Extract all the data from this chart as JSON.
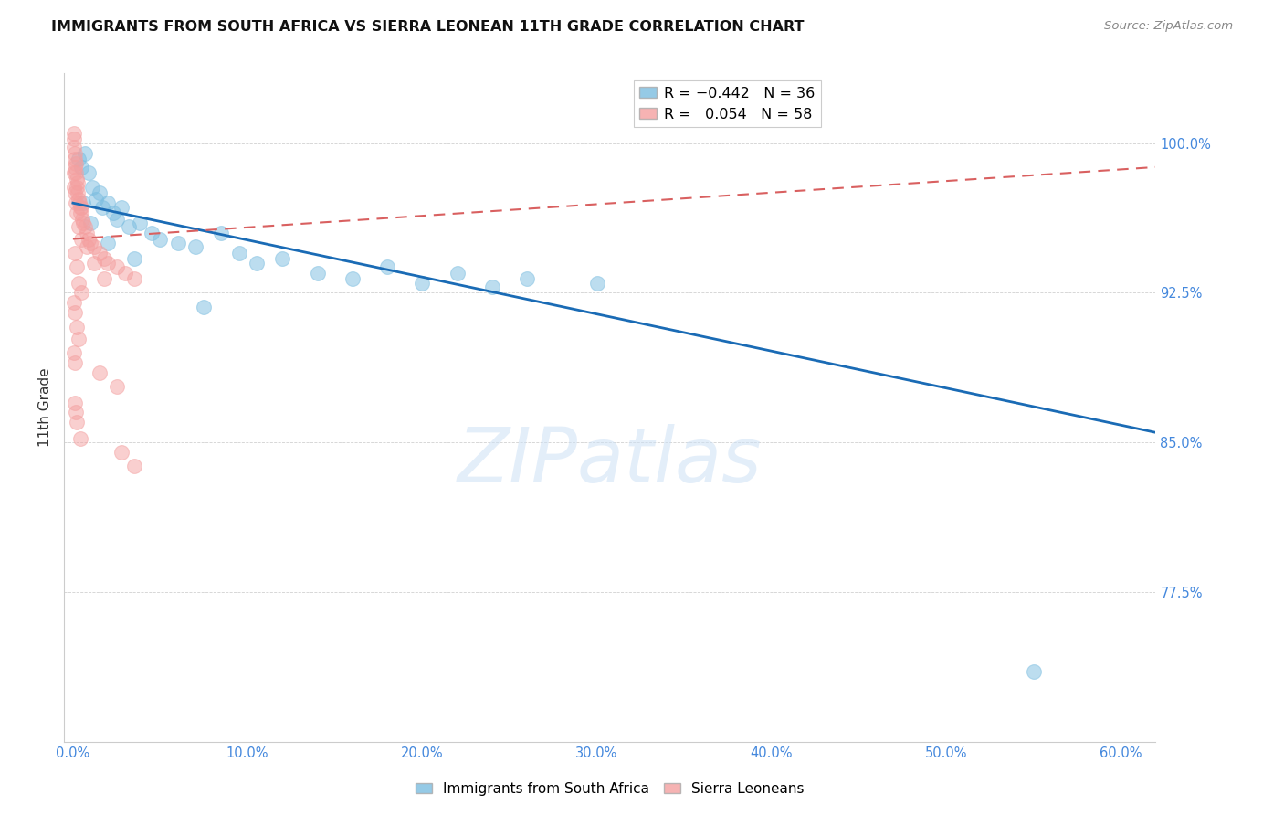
{
  "title": "IMMIGRANTS FROM SOUTH AFRICA VS SIERRA LEONEAN 11TH GRADE CORRELATION CHART",
  "source": "Source: ZipAtlas.com",
  "xlabel_vals": [
    0.0,
    10.0,
    20.0,
    30.0,
    40.0,
    50.0,
    60.0
  ],
  "ylabel_vals": [
    77.5,
    85.0,
    92.5,
    100.0
  ],
  "ylabel_ticks": [
    "77.5%",
    "85.0%",
    "92.5%",
    "100.0%"
  ],
  "xlim": [
    -0.5,
    62.0
  ],
  "ylim": [
    70.0,
    103.5
  ],
  "ylabel_label": "11th Grade",
  "blue_color": "#7bbde0",
  "pink_color": "#f4a0a0",
  "blue_line_color": "#1a6bb5",
  "pink_line_color": "#d96060",
  "watermark_text": "ZIPatlas",
  "blue_scatter": [
    [
      0.3,
      99.2
    ],
    [
      0.5,
      98.8
    ],
    [
      0.7,
      99.5
    ],
    [
      0.9,
      98.5
    ],
    [
      1.1,
      97.8
    ],
    [
      1.3,
      97.2
    ],
    [
      1.5,
      97.5
    ],
    [
      1.7,
      96.8
    ],
    [
      2.0,
      97.0
    ],
    [
      2.3,
      96.5
    ],
    [
      2.5,
      96.2
    ],
    [
      2.8,
      96.8
    ],
    [
      3.2,
      95.8
    ],
    [
      3.8,
      96.0
    ],
    [
      4.5,
      95.5
    ],
    [
      5.0,
      95.2
    ],
    [
      6.0,
      95.0
    ],
    [
      7.0,
      94.8
    ],
    [
      8.5,
      95.5
    ],
    [
      9.5,
      94.5
    ],
    [
      10.5,
      94.0
    ],
    [
      12.0,
      94.2
    ],
    [
      14.0,
      93.5
    ],
    [
      16.0,
      93.2
    ],
    [
      18.0,
      93.8
    ],
    [
      20.0,
      93.0
    ],
    [
      22.0,
      93.5
    ],
    [
      24.0,
      92.8
    ],
    [
      26.0,
      93.2
    ],
    [
      30.0,
      93.0
    ],
    [
      0.6,
      97.0
    ],
    [
      1.0,
      96.0
    ],
    [
      2.0,
      95.0
    ],
    [
      3.5,
      94.2
    ],
    [
      55.0,
      73.5
    ],
    [
      7.5,
      91.8
    ]
  ],
  "pink_scatter": [
    [
      0.05,
      100.2
    ],
    [
      0.07,
      99.8
    ],
    [
      0.08,
      100.5
    ],
    [
      0.1,
      99.5
    ],
    [
      0.12,
      99.2
    ],
    [
      0.13,
      98.8
    ],
    [
      0.15,
      99.0
    ],
    [
      0.18,
      98.5
    ],
    [
      0.2,
      98.2
    ],
    [
      0.22,
      97.8
    ],
    [
      0.25,
      98.0
    ],
    [
      0.28,
      97.5
    ],
    [
      0.3,
      97.2
    ],
    [
      0.35,
      97.0
    ],
    [
      0.4,
      96.8
    ],
    [
      0.45,
      96.5
    ],
    [
      0.5,
      96.8
    ],
    [
      0.55,
      96.2
    ],
    [
      0.6,
      96.0
    ],
    [
      0.7,
      95.8
    ],
    [
      0.8,
      95.5
    ],
    [
      0.9,
      95.2
    ],
    [
      1.0,
      95.0
    ],
    [
      1.2,
      94.8
    ],
    [
      1.5,
      94.5
    ],
    [
      1.8,
      94.2
    ],
    [
      2.0,
      94.0
    ],
    [
      2.5,
      93.8
    ],
    [
      3.0,
      93.5
    ],
    [
      3.5,
      93.2
    ],
    [
      0.1,
      97.5
    ],
    [
      0.15,
      97.0
    ],
    [
      0.2,
      96.5
    ],
    [
      0.3,
      95.8
    ],
    [
      0.5,
      95.2
    ],
    [
      0.8,
      94.8
    ],
    [
      1.2,
      94.0
    ],
    [
      1.8,
      93.2
    ],
    [
      0.05,
      98.5
    ],
    [
      0.08,
      97.8
    ],
    [
      0.1,
      94.5
    ],
    [
      0.2,
      93.8
    ],
    [
      0.3,
      93.0
    ],
    [
      0.5,
      92.5
    ],
    [
      0.08,
      92.0
    ],
    [
      0.12,
      91.5
    ],
    [
      0.2,
      90.8
    ],
    [
      0.3,
      90.2
    ],
    [
      0.08,
      89.5
    ],
    [
      0.12,
      89.0
    ],
    [
      1.5,
      88.5
    ],
    [
      2.5,
      87.8
    ],
    [
      0.1,
      87.0
    ],
    [
      0.15,
      86.5
    ],
    [
      0.2,
      86.0
    ],
    [
      0.4,
      85.2
    ],
    [
      2.8,
      84.5
    ],
    [
      3.5,
      83.8
    ]
  ]
}
